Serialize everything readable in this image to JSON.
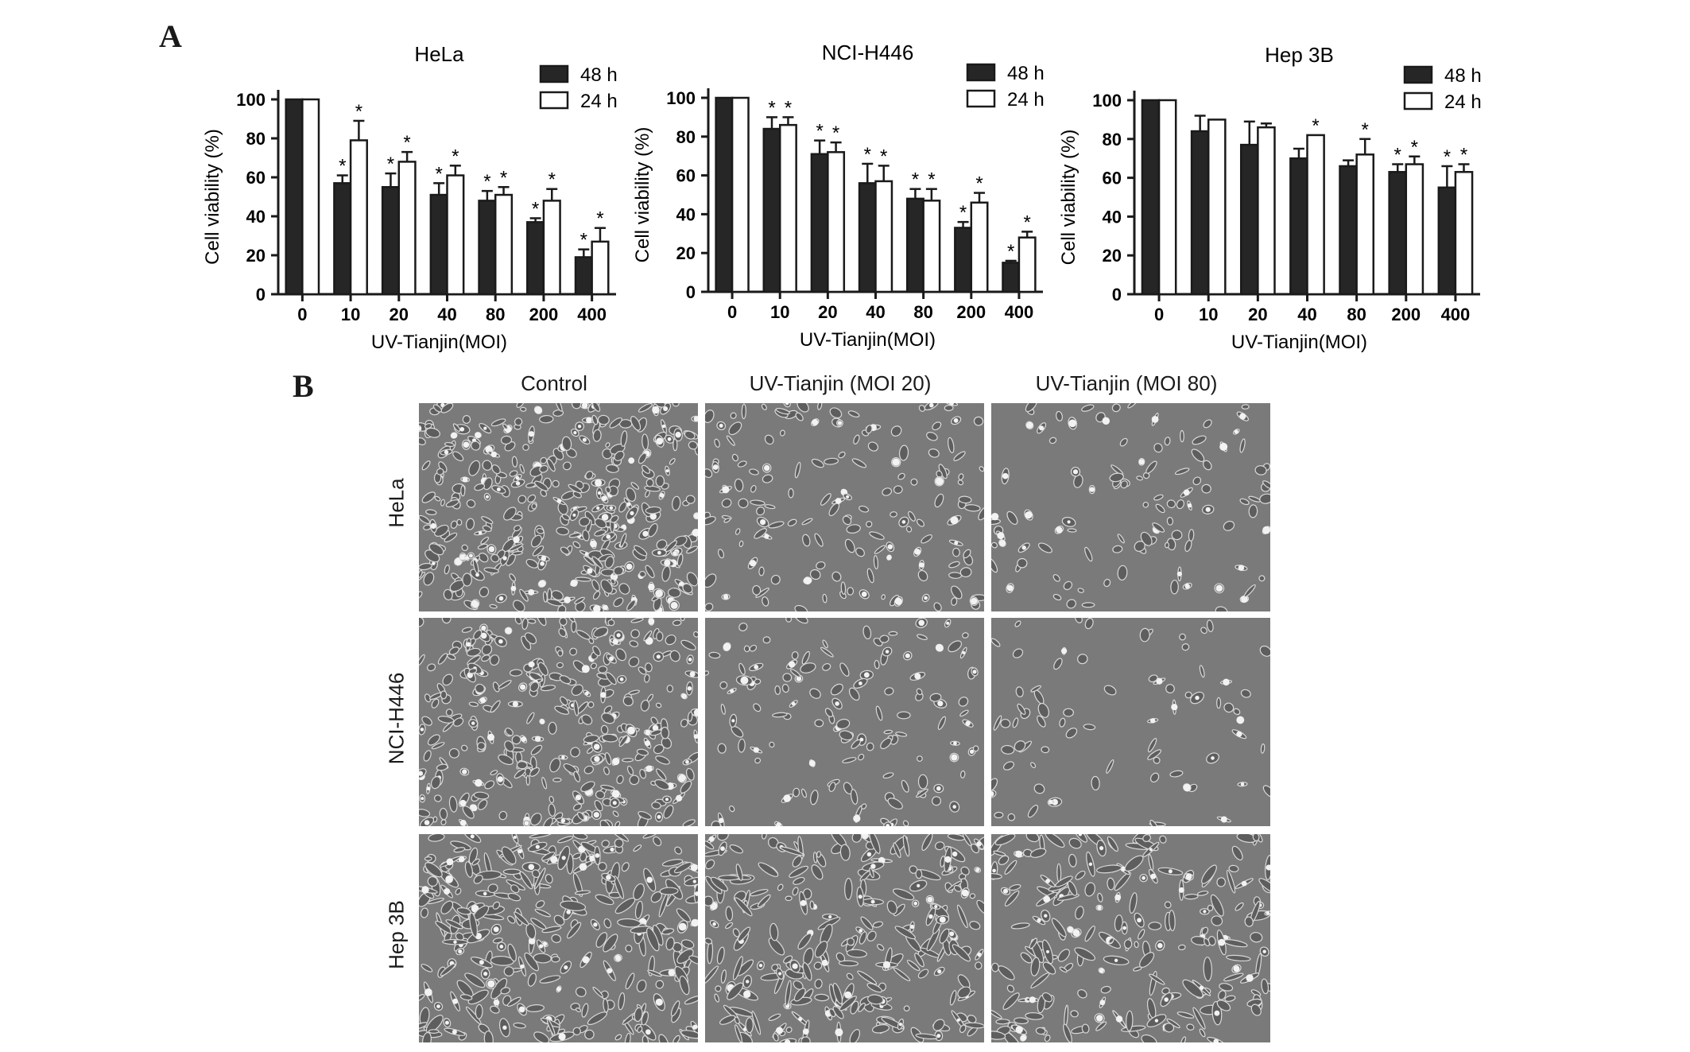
{
  "panels": {
    "a_label": "A",
    "b_label": "B"
  },
  "chart_data": [
    {
      "type": "bar",
      "title": "HeLa",
      "xlabel": "UV-Tianjin(MOI)",
      "ylabel": "Cell viability (%)",
      "categories": [
        "0",
        "10",
        "20",
        "40",
        "80",
        "200",
        "400"
      ],
      "ylim": [
        0,
        100
      ],
      "yticks": [
        "0",
        "20",
        "40",
        "60",
        "80",
        "100"
      ],
      "legend_position": "top-right",
      "series": [
        {
          "name": "48 h",
          "color": "#262626",
          "values": [
            100,
            57,
            55,
            51,
            48,
            37,
            19
          ],
          "errors": [
            0,
            4,
            7,
            6,
            5,
            2,
            4
          ],
          "significant": [
            false,
            true,
            true,
            true,
            true,
            true,
            true
          ]
        },
        {
          "name": "24 h",
          "color": "#ffffff",
          "values": [
            100,
            79,
            68,
            61,
            51,
            48,
            27
          ],
          "errors": [
            0,
            10,
            5,
            5,
            4,
            6,
            7
          ],
          "significant": [
            false,
            true,
            true,
            true,
            true,
            true,
            true
          ]
        }
      ],
      "marker": "*"
    },
    {
      "type": "bar",
      "title": "NCI-H446",
      "xlabel": "UV-Tianjin(MOI)",
      "ylabel": "Cell viability (%)",
      "categories": [
        "0",
        "10",
        "20",
        "40",
        "80",
        "200",
        "400"
      ],
      "ylim": [
        0,
        100
      ],
      "yticks": [
        "0",
        "20",
        "40",
        "60",
        "80",
        "100"
      ],
      "legend_position": "top-right",
      "series": [
        {
          "name": "48 h",
          "color": "#262626",
          "values": [
            100,
            84,
            71,
            56,
            48,
            33,
            15
          ],
          "errors": [
            0,
            6,
            7,
            10,
            5,
            3,
            1
          ],
          "significant": [
            false,
            true,
            true,
            true,
            true,
            true,
            true
          ]
        },
        {
          "name": "24 h",
          "color": "#ffffff",
          "values": [
            100,
            86,
            72,
            57,
            47,
            46,
            28
          ],
          "errors": [
            0,
            4,
            5,
            8,
            6,
            5,
            3
          ],
          "significant": [
            false,
            true,
            true,
            true,
            true,
            true,
            true
          ]
        }
      ],
      "marker": "*"
    },
    {
      "type": "bar",
      "title": "Hep 3B",
      "xlabel": "UV-Tianjin(MOI)",
      "ylabel": "Cell viability (%)",
      "categories": [
        "0",
        "10",
        "20",
        "40",
        "80",
        "200",
        "400"
      ],
      "ylim": [
        0,
        100
      ],
      "yticks": [
        "0",
        "20",
        "40",
        "60",
        "80",
        "100"
      ],
      "legend_position": "top-right",
      "series": [
        {
          "name": "48 h",
          "color": "#262626",
          "values": [
            100,
            84,
            77,
            70,
            66,
            63,
            55
          ],
          "errors": [
            0,
            8,
            12,
            5,
            3,
            4,
            11
          ],
          "significant": [
            false,
            false,
            false,
            false,
            false,
            true,
            true
          ]
        },
        {
          "name": "24 h",
          "color": "#ffffff",
          "values": [
            100,
            90,
            86,
            82,
            72,
            67,
            63
          ],
          "errors": [
            0,
            0,
            2,
            0,
            8,
            4,
            4
          ],
          "significant": [
            false,
            false,
            false,
            true,
            true,
            true,
            true
          ]
        }
      ],
      "marker": "*"
    }
  ],
  "micrographs": {
    "column_titles": [
      "Control",
      "UV-Tianjin (MOI 20)",
      "UV-Tianjin (MOI 80)"
    ],
    "row_labels": [
      "HeLa",
      "NCI-H446",
      "Hep 3B"
    ]
  }
}
